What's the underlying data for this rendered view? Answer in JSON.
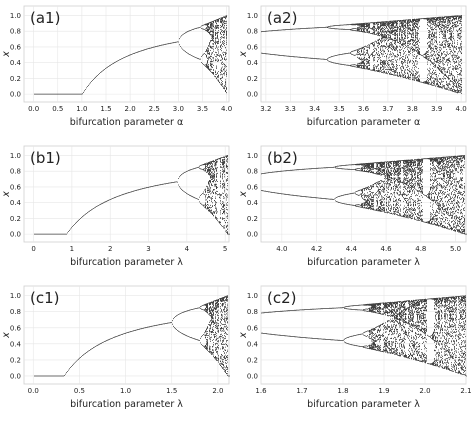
{
  "chart_data": [
    {
      "type": "scatter",
      "panel_label": "(a1)",
      "param": "alpha",
      "xlabel": "bifurcation parameter α",
      "ylabel": "x",
      "xlim": [
        -0.2,
        4.05
      ],
      "ylim": [
        -0.1,
        1.12
      ],
      "xticks": [
        0.0,
        0.5,
        1.0,
        1.5,
        2.0,
        2.5,
        3.0,
        3.5,
        4.0
      ],
      "xtick_labels": [
        "0.0",
        "0.5",
        "1.0",
        "1.5",
        "2.0",
        "2.5",
        "3.0",
        "3.5",
        "4.0"
      ],
      "yticks": [
        0.0,
        0.2,
        0.4,
        0.6,
        0.8,
        1.0
      ],
      "ytick_labels": [
        "0.0",
        "0.2",
        "0.4",
        "0.6",
        "0.8",
        "1.0"
      ],
      "period_doubling_at": [
        3.0,
        3.449
      ],
      "chaos_onset": 3.57,
      "grid": true
    },
    {
      "type": "scatter",
      "panel_label": "(a2)",
      "param": "alpha",
      "xlabel": "bifurcation parameter α",
      "ylabel": "x",
      "xlim": [
        3.18,
        4.02
      ],
      "ylim": [
        -0.1,
        1.12
      ],
      "xticks": [
        3.2,
        3.3,
        3.4,
        3.5,
        3.6,
        3.7,
        3.8,
        3.9,
        4.0
      ],
      "xtick_labels": [
        "3.2",
        "3.3",
        "3.4",
        "3.5",
        "3.6",
        "3.7",
        "3.8",
        "3.9",
        "4.0"
      ],
      "yticks": [
        0.0,
        0.2,
        0.4,
        0.6,
        0.8,
        1.0
      ],
      "ytick_labels": [
        "0.0",
        "0.2",
        "0.4",
        "0.6",
        "0.8",
        "1.0"
      ],
      "period_doubling_at": [
        3.449
      ],
      "chaos_onset": 3.57,
      "grid": true
    },
    {
      "type": "scatter",
      "panel_label": "(b1)",
      "param": "lambda",
      "xlabel": "bifurcation parameter λ",
      "ylabel": "x",
      "xlim": [
        -0.25,
        5.1
      ],
      "ylim": [
        -0.1,
        1.12
      ],
      "xticks": [
        0,
        1,
        2,
        3,
        4,
        5
      ],
      "xtick_labels": [
        "0",
        "1",
        "2",
        "3",
        "4",
        "5"
      ],
      "yticks": [
        0.0,
        0.2,
        0.4,
        0.6,
        0.8,
        1.0
      ],
      "ytick_labels": [
        "0.0",
        "0.2",
        "0.4",
        "0.6",
        "0.8",
        "1.0"
      ],
      "period_doubling_at": [
        3.75,
        4.3
      ],
      "chaos_onset": 4.45,
      "grid": true
    },
    {
      "type": "scatter",
      "panel_label": "(b2)",
      "param": "lambda",
      "xlabel": "bifurcation parameter λ",
      "ylabel": "x",
      "xlim": [
        3.88,
        5.06
      ],
      "ylim": [
        -0.1,
        1.12
      ],
      "xticks": [
        4.0,
        4.2,
        4.4,
        4.6,
        4.8,
        5.0
      ],
      "xtick_labels": [
        "4.0",
        "4.2",
        "4.4",
        "4.6",
        "4.8",
        "5.0"
      ],
      "yticks": [
        0.0,
        0.2,
        0.4,
        0.6,
        0.8,
        1.0
      ],
      "ytick_labels": [
        "0.0",
        "0.2",
        "0.4",
        "0.6",
        "0.8",
        "1.0"
      ],
      "period_doubling_at": [
        4.3
      ],
      "chaos_onset": 4.45,
      "grid": true
    },
    {
      "type": "scatter",
      "panel_label": "(c1)",
      "param": "lambda",
      "xlabel": "bifurcation parameter λ",
      "ylabel": "x",
      "xlim": [
        -0.1,
        2.12
      ],
      "ylim": [
        -0.1,
        1.12
      ],
      "xticks": [
        0.0,
        0.5,
        1.0,
        1.5,
        2.0
      ],
      "xtick_labels": [
        "0.0",
        "0.5",
        "1.0",
        "1.5",
        "2.0"
      ],
      "yticks": [
        0.0,
        0.2,
        0.4,
        0.6,
        0.8,
        1.0
      ],
      "ytick_labels": [
        "0.0",
        "0.2",
        "0.4",
        "0.6",
        "0.8",
        "1.0"
      ],
      "period_doubling_at": [
        1.5,
        1.8
      ],
      "chaos_onset": 1.86,
      "grid": true
    },
    {
      "type": "scatter",
      "panel_label": "(c2)",
      "param": "lambda",
      "xlabel": "bifurcation parameter λ",
      "ylabel": "x",
      "xlim": [
        1.6,
        2.1
      ],
      "ylim": [
        -0.1,
        1.12
      ],
      "xticks": [
        1.6,
        1.7,
        1.8,
        1.9,
        2.0,
        2.1
      ],
      "xtick_labels": [
        "1.6",
        "1.7",
        "1.8",
        "1.9",
        "2.0",
        "2.1"
      ],
      "yticks": [
        0.0,
        0.2,
        0.4,
        0.6,
        0.8,
        1.0
      ],
      "ytick_labels": [
        "0.0",
        "0.2",
        "0.4",
        "0.6",
        "0.8",
        "1.0"
      ],
      "period_doubling_at": [
        1.8
      ],
      "chaos_onset": 1.86,
      "grid": true
    }
  ]
}
